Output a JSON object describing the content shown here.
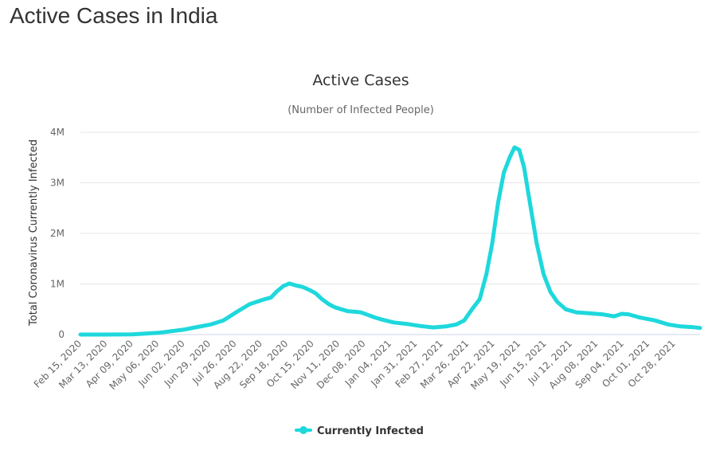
{
  "page": {
    "heading": "Active Cases in India"
  },
  "chart_data": {
    "type": "line",
    "title": "Active Cases",
    "subtitle": "(Number of Infected People)",
    "ylabel": "Total Coronavirus Currently Infected",
    "xlabel": "",
    "ylim": [
      0,
      4000000
    ],
    "yticks": [
      0,
      1000000,
      2000000,
      3000000,
      4000000
    ],
    "ytick_labels": [
      "0",
      "1M",
      "2M",
      "3M",
      "4M"
    ],
    "x_categories": [
      "Feb 15, 2020",
      "Mar 13, 2020",
      "Apr 09, 2020",
      "May 06, 2020",
      "Jun 02, 2020",
      "Jun 29, 2020",
      "Jul 26, 2020",
      "Aug 22, 2020",
      "Sep 18, 2020",
      "Oct 15, 2020",
      "Nov 11, 2020",
      "Dec 08, 2020",
      "Jan 04, 2021",
      "Jan 31, 2021",
      "Feb 27, 2021",
      "Mar 26, 2021",
      "Apr 22, 2021",
      "May 19, 2021",
      "Jun 15, 2021",
      "Jul 12, 2021",
      "Aug 08, 2021",
      "Sep 04, 2021",
      "Oct 01, 2021",
      "Oct 28, 2021"
    ],
    "x_range": [
      "2020-02-15",
      "2021-11-17"
    ],
    "grid": true,
    "legend_position": "bottom-center",
    "series": [
      {
        "name": "Currently Infected",
        "color": "#1ed8dc",
        "points": [
          [
            "2020-02-15",
            3
          ],
          [
            "2020-03-13",
            70
          ],
          [
            "2020-04-09",
            5000
          ],
          [
            "2020-05-06",
            35000
          ],
          [
            "2020-06-02",
            100000
          ],
          [
            "2020-06-15",
            150000
          ],
          [
            "2020-06-29",
            200000
          ],
          [
            "2020-07-12",
            280000
          ],
          [
            "2020-07-26",
            450000
          ],
          [
            "2020-08-08",
            600000
          ],
          [
            "2020-08-22",
            690000
          ],
          [
            "2020-08-30",
            730000
          ],
          [
            "2020-09-05",
            850000
          ],
          [
            "2020-09-12",
            960000
          ],
          [
            "2020-09-18",
            1010000
          ],
          [
            "2020-09-25",
            970000
          ],
          [
            "2020-10-02",
            940000
          ],
          [
            "2020-10-09",
            880000
          ],
          [
            "2020-10-15",
            820000
          ],
          [
            "2020-10-22",
            700000
          ],
          [
            "2020-10-29",
            600000
          ],
          [
            "2020-11-04",
            540000
          ],
          [
            "2020-11-11",
            500000
          ],
          [
            "2020-11-18",
            460000
          ],
          [
            "2020-11-25",
            450000
          ],
          [
            "2020-12-01",
            440000
          ],
          [
            "2020-12-08",
            390000
          ],
          [
            "2020-12-15",
            340000
          ],
          [
            "2020-12-22",
            300000
          ],
          [
            "2021-01-04",
            240000
          ],
          [
            "2021-01-18",
            210000
          ],
          [
            "2021-01-31",
            170000
          ],
          [
            "2021-02-14",
            140000
          ],
          [
            "2021-02-27",
            160000
          ],
          [
            "2021-03-10",
            200000
          ],
          [
            "2021-03-18",
            280000
          ],
          [
            "2021-03-26",
            500000
          ],
          [
            "2021-04-03",
            700000
          ],
          [
            "2021-04-10",
            1200000
          ],
          [
            "2021-04-16",
            1800000
          ],
          [
            "2021-04-22",
            2600000
          ],
          [
            "2021-04-28",
            3200000
          ],
          [
            "2021-05-04",
            3500000
          ],
          [
            "2021-05-09",
            3700000
          ],
          [
            "2021-05-14",
            3650000
          ],
          [
            "2021-05-19",
            3300000
          ],
          [
            "2021-05-25",
            2600000
          ],
          [
            "2021-06-01",
            1800000
          ],
          [
            "2021-06-08",
            1200000
          ],
          [
            "2021-06-15",
            850000
          ],
          [
            "2021-06-22",
            650000
          ],
          [
            "2021-07-01",
            500000
          ],
          [
            "2021-07-12",
            440000
          ],
          [
            "2021-07-25",
            420000
          ],
          [
            "2021-08-08",
            400000
          ],
          [
            "2021-08-20",
            360000
          ],
          [
            "2021-08-28",
            410000
          ],
          [
            "2021-09-04",
            400000
          ],
          [
            "2021-09-15",
            340000
          ],
          [
            "2021-10-01",
            280000
          ],
          [
            "2021-10-15",
            200000
          ],
          [
            "2021-10-28",
            160000
          ],
          [
            "2021-11-10",
            145000
          ],
          [
            "2021-11-17",
            130000
          ]
        ]
      }
    ]
  }
}
